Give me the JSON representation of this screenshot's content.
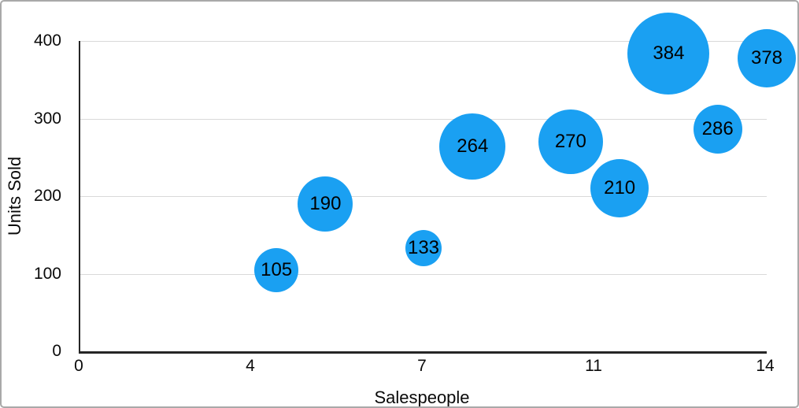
{
  "figure": {
    "background": "#ffffff",
    "border_color": "#a9a9a9"
  },
  "chart_data": {
    "type": "bubble",
    "title": "",
    "xlabel": "Salespeople",
    "ylabel": "Units Sold",
    "grid": true,
    "legend_position": "none",
    "x_axis": {
      "min": 0,
      "max": 14,
      "ticks": [
        {
          "value": 0,
          "label": "0"
        },
        {
          "value": 3.5,
          "label": "4"
        },
        {
          "value": 7,
          "label": "7"
        },
        {
          "value": 10.5,
          "label": "11"
        },
        {
          "value": 14,
          "label": "14"
        }
      ]
    },
    "y_axis": {
      "min": 0,
      "max": 400,
      "ticks": [
        {
          "value": 0,
          "label": "0"
        },
        {
          "value": 100,
          "label": "100"
        },
        {
          "value": 200,
          "label": "200"
        },
        {
          "value": 300,
          "label": "300"
        },
        {
          "value": 400,
          "label": "400"
        }
      ]
    },
    "colors": {
      "bubble_fill": "#1aa0f2",
      "bubble_label": "#000000",
      "gridline": "#d9d9d9",
      "axis": "#262626",
      "text": "#0a0a0a"
    },
    "series": [
      {
        "name": "Units Sold",
        "points": [
          {
            "x": 4,
            "y": 105,
            "label": "105",
            "radius_px": 28
          },
          {
            "x": 5,
            "y": 190,
            "label": "190",
            "radius_px": 35
          },
          {
            "x": 7,
            "y": 133,
            "label": "133",
            "radius_px": 23
          },
          {
            "x": 8,
            "y": 264,
            "label": "264",
            "radius_px": 42
          },
          {
            "x": 10,
            "y": 270,
            "label": "270",
            "radius_px": 41
          },
          {
            "x": 11,
            "y": 210,
            "label": "210",
            "radius_px": 37
          },
          {
            "x": 12,
            "y": 384,
            "label": "384",
            "radius_px": 52
          },
          {
            "x": 13,
            "y": 286,
            "label": "286",
            "radius_px": 31
          },
          {
            "x": 14,
            "y": 378,
            "label": "378",
            "radius_px": 37
          }
        ]
      }
    ]
  }
}
